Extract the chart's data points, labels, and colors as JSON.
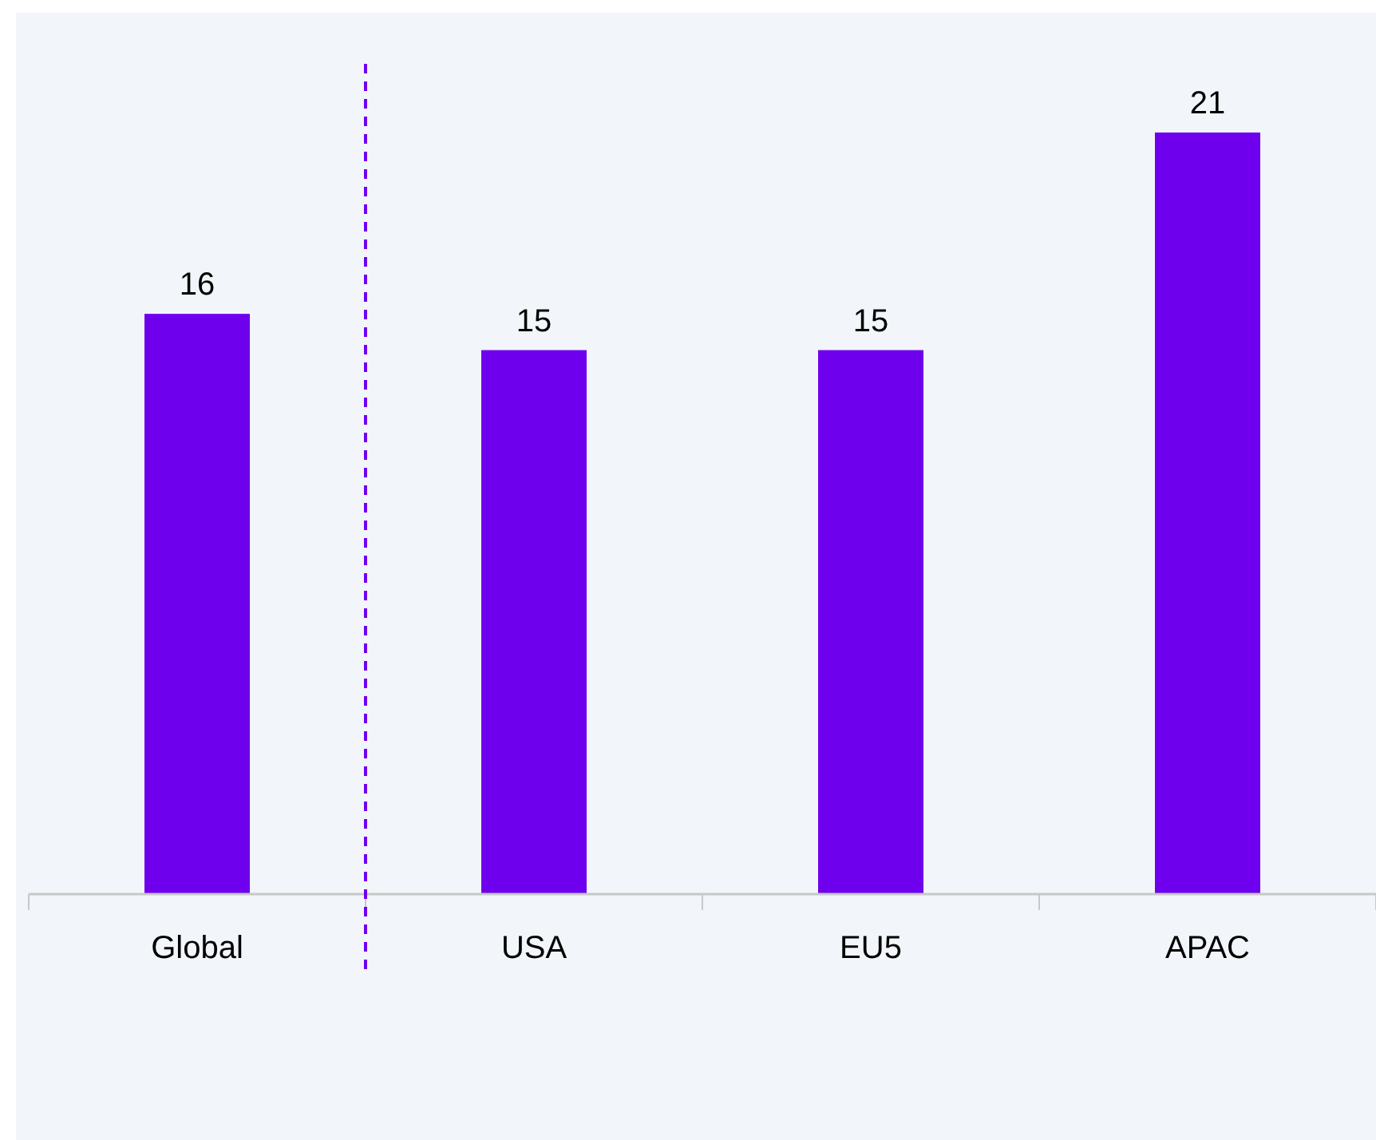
{
  "chart_data": {
    "type": "bar",
    "categories": [
      "Global",
      "USA",
      "EU5",
      "APAC"
    ],
    "values": [
      16,
      15,
      15,
      21
    ],
    "color": "#6e00ee",
    "data_labels": true,
    "tick_labels": "x"
  }
}
